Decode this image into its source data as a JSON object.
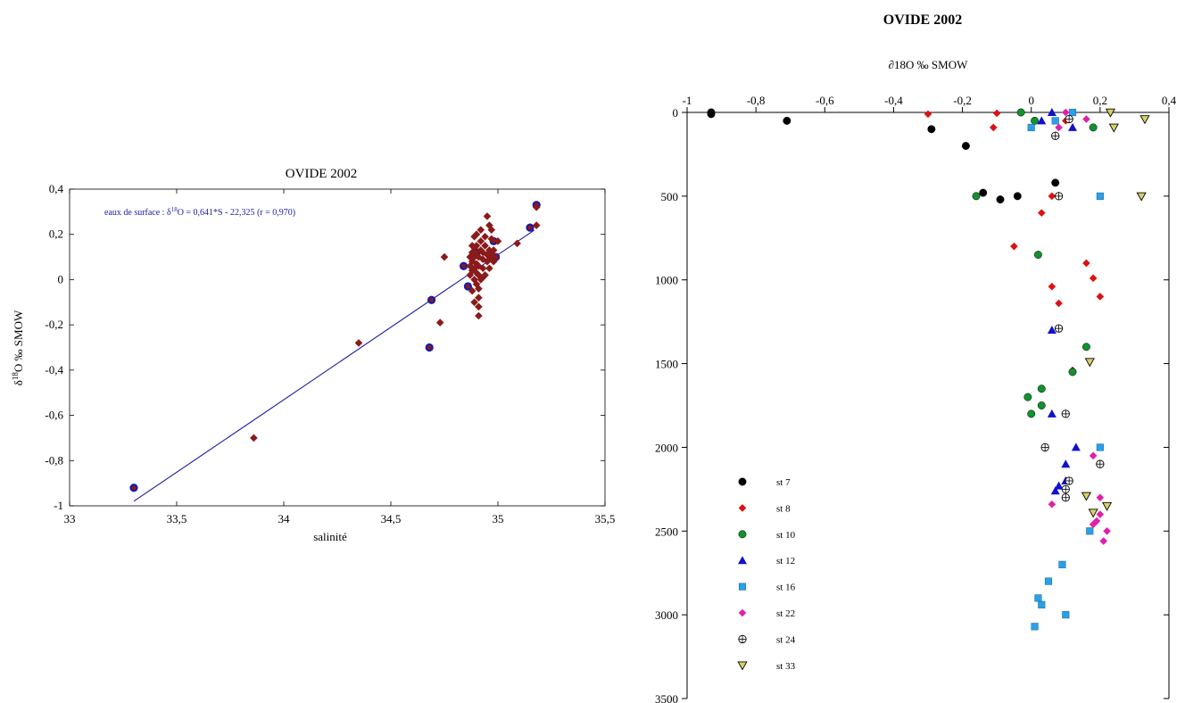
{
  "chart_data": [
    {
      "type": "scatter",
      "title": "OVIDE 2002",
      "xlabel": "salinité",
      "ylabel_main": "δ",
      "ylabel_sup": "18",
      "ylabel_rest": "O ‰ SMOW",
      "xlim": [
        33,
        35.5
      ],
      "ylim": [
        -1,
        0.4
      ],
      "x_ticks": [
        "33",
        "33,5",
        "34",
        "34,5",
        "35",
        "35,5"
      ],
      "y_ticks": [
        "0,4",
        "0,2",
        "0",
        "-0,2",
        "-0,4",
        "-0,6",
        "-0,8",
        "-1"
      ],
      "annotation": {
        "prefix": "eaux de surface : δ",
        "sup": "18",
        "suffix": "O = 0,641*S - 22,325   (r = 0,970)"
      },
      "regression": {
        "slope": 0.641,
        "intercept": -22.325,
        "x_range": [
          33.3,
          35.17
        ],
        "color": "#1a1aa6"
      },
      "series": [
        {
          "marker": "circle",
          "color": "#1a1aa6",
          "points": [
            [
              33.3,
              -0.92
            ],
            [
              34.68,
              -0.3
            ],
            [
              34.69,
              -0.09
            ],
            [
              34.84,
              0.06
            ],
            [
              34.86,
              -0.03
            ],
            [
              34.9,
              0.12
            ],
            [
              34.99,
              0.1
            ],
            [
              34.98,
              0.17
            ],
            [
              35.15,
              0.23
            ],
            [
              35.18,
              0.33
            ]
          ]
        },
        {
          "marker": "diamond",
          "color": "#8b1a1a",
          "points": [
            [
              33.86,
              -0.7
            ],
            [
              34.35,
              -0.28
            ],
            [
              34.73,
              -0.19
            ],
            [
              34.75,
              0.1
            ],
            [
              35.09,
              0.16
            ],
            [
              35.18,
              0.24
            ],
            [
              35.18,
              0.32
            ],
            [
              34.87,
              0.02
            ],
            [
              34.87,
              0.06
            ],
            [
              34.87,
              0.1
            ],
            [
              34.88,
              -0.05
            ],
            [
              34.88,
              0.04
            ],
            [
              34.88,
              0.08
            ],
            [
              34.88,
              0.12
            ],
            [
              34.88,
              0.15
            ],
            [
              34.89,
              -0.1
            ],
            [
              34.89,
              0.0
            ],
            [
              34.89,
              0.05
            ],
            [
              34.89,
              0.1
            ],
            [
              34.89,
              0.14
            ],
            [
              34.89,
              0.19
            ],
            [
              34.9,
              -0.02
            ],
            [
              34.9,
              0.03
            ],
            [
              34.9,
              0.07
            ],
            [
              34.9,
              0.11
            ],
            [
              34.9,
              0.15
            ],
            [
              34.9,
              0.2
            ],
            [
              34.91,
              -0.08
            ],
            [
              34.91,
              -0.16
            ],
            [
              34.91,
              -0.12
            ],
            [
              34.91,
              -0.04
            ],
            [
              34.91,
              0.02
            ],
            [
              34.91,
              0.06
            ],
            [
              34.91,
              0.1
            ],
            [
              34.92,
              0.13
            ],
            [
              34.92,
              0.17
            ],
            [
              34.92,
              0.22
            ],
            [
              34.93,
              0.01
            ],
            [
              34.93,
              0.05
            ],
            [
              34.93,
              0.09
            ],
            [
              34.93,
              0.12
            ],
            [
              34.94,
              0.15
            ],
            [
              34.94,
              0.19
            ],
            [
              34.95,
              0.08
            ],
            [
              34.95,
              0.11
            ],
            [
              34.95,
              0.28
            ],
            [
              34.96,
              0.05
            ],
            [
              34.96,
              0.09
            ],
            [
              34.96,
              0.13
            ],
            [
              34.96,
              0.24
            ],
            [
              34.97,
              0.11
            ],
            [
              34.97,
              0.18
            ],
            [
              34.97,
              0.22
            ],
            [
              34.98,
              0.08
            ],
            [
              34.98,
              0.13
            ],
            [
              34.99,
              0.1
            ],
            [
              35.0,
              0.17
            ],
            [
              34.94,
              0.02
            ],
            [
              34.92,
              0.0
            ]
          ]
        }
      ]
    },
    {
      "type": "scatter",
      "title": "OVIDE 2002",
      "xlabel": "∂18O ‰ SMOW",
      "xlim": [
        -1,
        0.4
      ],
      "ylim": [
        0,
        3500
      ],
      "y_inverted": true,
      "x_axis_position": "top",
      "x_ticks": [
        "-1",
        "-0,8",
        "-0,6",
        "-0,4",
        "-0,2",
        "0",
        "0,2",
        "0,4"
      ],
      "y_ticks": [
        "0",
        "500",
        "1000",
        "1500",
        "2000",
        "2500",
        "3000",
        "3500"
      ],
      "legend_position": "bottom-left",
      "series": [
        {
          "name": "st 7",
          "marker": "circle",
          "color": "#000000",
          "points": [
            [
              -0.93,
              0
            ],
            [
              -0.93,
              10
            ],
            [
              -0.71,
              50
            ],
            [
              -0.29,
              100
            ],
            [
              -0.19,
              200
            ],
            [
              0.07,
              420
            ],
            [
              -0.14,
              480
            ],
            [
              -0.04,
              500
            ],
            [
              -0.09,
              520
            ]
          ]
        },
        {
          "name": "st 8",
          "marker": "diamond",
          "color": "#dd1111",
          "points": [
            [
              -0.3,
              10
            ],
            [
              -0.1,
              5
            ],
            [
              -0.11,
              90
            ],
            [
              0.1,
              50
            ],
            [
              0.11,
              40
            ],
            [
              0.06,
              500
            ],
            [
              0.03,
              600
            ],
            [
              -0.05,
              800
            ],
            [
              0.16,
              900
            ],
            [
              0.18,
              990
            ],
            [
              0.06,
              1040
            ],
            [
              0.2,
              1100
            ],
            [
              0.08,
              1140
            ],
            [
              0.12,
              1540
            ]
          ]
        },
        {
          "name": "st 10",
          "marker": "circle",
          "color": "#11922e",
          "points": [
            [
              -0.03,
              0
            ],
            [
              0.01,
              50
            ],
            [
              0.18,
              90
            ],
            [
              -0.16,
              500
            ],
            [
              0.02,
              850
            ],
            [
              0.16,
              1400
            ],
            [
              0.12,
              1550
            ],
            [
              0.03,
              1650
            ],
            [
              -0.01,
              1700
            ],
            [
              0.03,
              1750
            ],
            [
              0.0,
              1800
            ]
          ]
        },
        {
          "name": "st 12",
          "marker": "triangle",
          "color": "#1111cc",
          "points": [
            [
              0.06,
              0
            ],
            [
              0.03,
              50
            ],
            [
              0.12,
              90
            ],
            [
              0.06,
              1300
            ],
            [
              0.06,
              1800
            ],
            [
              0.13,
              2000
            ],
            [
              0.1,
              2100
            ],
            [
              0.1,
              2200
            ],
            [
              0.08,
              2230
            ],
            [
              0.07,
              2260
            ]
          ]
        },
        {
          "name": "st 16",
          "marker": "square",
          "color": "#2aa0e8",
          "points": [
            [
              0.12,
              0
            ],
            [
              0.07,
              50
            ],
            [
              0.0,
              90
            ],
            [
              0.2,
              500
            ],
            [
              0.2,
              2000
            ],
            [
              0.17,
              2500
            ],
            [
              0.09,
              2700
            ],
            [
              0.05,
              2800
            ],
            [
              0.02,
              2900
            ],
            [
              0.03,
              2940
            ],
            [
              0.1,
              3000
            ],
            [
              0.01,
              3070
            ]
          ]
        },
        {
          "name": "st 22",
          "marker": "diamond",
          "color": "#e020a8",
          "points": [
            [
              0.1,
              0
            ],
            [
              0.16,
              40
            ],
            [
              0.08,
              90
            ],
            [
              0.18,
              2050
            ],
            [
              0.2,
              2300
            ],
            [
              0.06,
              2340
            ],
            [
              0.2,
              2400
            ],
            [
              0.19,
              2440
            ],
            [
              0.18,
              2460
            ],
            [
              0.22,
              2500
            ],
            [
              0.21,
              2560
            ]
          ]
        },
        {
          "name": "st 24",
          "marker": "circle-plus",
          "color": "#000000",
          "points": [
            [
              0.11,
              40
            ],
            [
              0.07,
              140
            ],
            [
              0.08,
              500
            ],
            [
              0.08,
              1290
            ],
            [
              0.1,
              1800
            ],
            [
              0.04,
              2000
            ],
            [
              0.2,
              2100
            ],
            [
              0.11,
              2200
            ],
            [
              0.1,
              2250
            ],
            [
              0.1,
              2300
            ]
          ]
        },
        {
          "name": "st 33",
          "marker": "triangle-down",
          "color": "#d6d26a",
          "points": [
            [
              0.23,
              0
            ],
            [
              0.33,
              40
            ],
            [
              0.24,
              90
            ],
            [
              0.32,
              500
            ],
            [
              0.17,
              1490
            ],
            [
              0.16,
              2290
            ],
            [
              0.22,
              2350
            ],
            [
              0.18,
              2390
            ]
          ]
        }
      ]
    }
  ]
}
